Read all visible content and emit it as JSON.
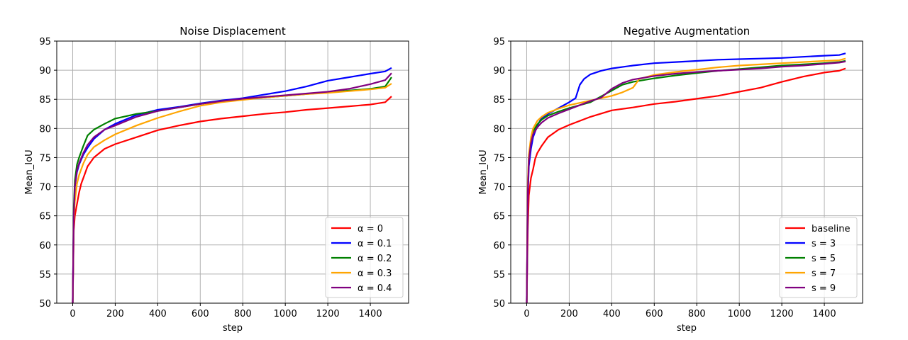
{
  "figure": {
    "charts": [
      {
        "key": "noise-displacement",
        "title": "Noise Displacement",
        "xlabel": "step",
        "ylabel": "Mean_IoU",
        "legend_title": "",
        "legend_location": "lower right"
      },
      {
        "key": "negative-augmentation",
        "title": "Negative Augmentation",
        "xlabel": "step",
        "ylabel": "Mean_IoU",
        "legend_title": "",
        "legend_location": "lower right"
      }
    ]
  },
  "chart_data": [
    {
      "type": "line",
      "title": "Noise Displacement",
      "xlabel": "step",
      "ylabel": "Mean_IoU",
      "xlim": [
        -75,
        1580
      ],
      "ylim": [
        50,
        95
      ],
      "xticks": [
        0,
        200,
        400,
        600,
        800,
        1000,
        1200,
        1400
      ],
      "yticks": [
        50,
        55,
        60,
        65,
        70,
        75,
        80,
        85,
        90,
        95
      ],
      "grid": true,
      "legend": "lower right",
      "series": [
        {
          "name": "α = 0",
          "color": "#ff0000",
          "x": [
            0,
            5,
            10,
            20,
            30,
            40,
            50,
            70,
            100,
            150,
            200,
            300,
            400,
            500,
            600,
            700,
            800,
            900,
            1000,
            1100,
            1200,
            1300,
            1400,
            1470,
            1500
          ],
          "y": [
            49.5,
            62.5,
            65.0,
            67.0,
            69.0,
            70.5,
            71.5,
            73.5,
            75.0,
            76.5,
            77.3,
            78.5,
            79.7,
            80.5,
            81.2,
            81.7,
            82.1,
            82.5,
            82.8,
            83.2,
            83.5,
            83.8,
            84.1,
            84.5,
            85.5
          ]
        },
        {
          "name": "α = 0.1",
          "color": "#0000ff",
          "x": [
            0,
            5,
            10,
            20,
            30,
            50,
            70,
            100,
            150,
            200,
            300,
            400,
            500,
            600,
            700,
            800,
            900,
            1000,
            1100,
            1200,
            1300,
            1400,
            1470,
            1500
          ],
          "y": [
            49.5,
            65.5,
            70.0,
            72.5,
            73.8,
            75.5,
            76.7,
            78.2,
            79.8,
            80.8,
            82.3,
            83.2,
            83.7,
            84.3,
            84.8,
            85.2,
            85.8,
            86.4,
            87.2,
            88.2,
            88.8,
            89.4,
            89.8,
            90.4
          ]
        },
        {
          "name": "α = 0.2",
          "color": "#008000",
          "x": [
            0,
            5,
            10,
            20,
            30,
            50,
            70,
            100,
            150,
            200,
            300,
            400,
            500,
            600,
            700,
            800,
            900,
            1000,
            1100,
            1200,
            1300,
            1400,
            1470,
            1500
          ],
          "y": [
            49.5,
            66.5,
            71.0,
            73.8,
            75.0,
            77.0,
            78.8,
            79.8,
            80.8,
            81.7,
            82.5,
            83.0,
            83.6,
            84.2,
            84.7,
            85.0,
            85.3,
            85.6,
            85.9,
            86.2,
            86.5,
            86.8,
            87.2,
            88.8
          ]
        },
        {
          "name": "α = 0.3",
          "color": "#ffa500",
          "x": [
            0,
            5,
            10,
            20,
            30,
            50,
            70,
            100,
            150,
            200,
            300,
            400,
            500,
            600,
            700,
            800,
            900,
            1000,
            1100,
            1200,
            1300,
            1400,
            1470,
            1500
          ],
          "y": [
            49.5,
            64.0,
            67.5,
            70.5,
            72.0,
            74.0,
            75.5,
            76.8,
            78.0,
            79.0,
            80.5,
            81.8,
            82.9,
            83.9,
            84.5,
            84.9,
            85.3,
            85.6,
            85.9,
            86.1,
            86.4,
            86.7,
            87.0,
            87.7
          ]
        },
        {
          "name": "α = 0.4",
          "color": "#800080",
          "x": [
            0,
            5,
            10,
            20,
            30,
            50,
            70,
            100,
            150,
            200,
            300,
            400,
            500,
            600,
            700,
            800,
            900,
            1000,
            1100,
            1200,
            1300,
            1400,
            1470,
            1500
          ],
          "y": [
            49.5,
            65.0,
            70.0,
            72.8,
            74.0,
            75.8,
            77.2,
            78.5,
            79.8,
            80.5,
            82.0,
            83.0,
            83.6,
            84.2,
            84.7,
            85.1,
            85.4,
            85.7,
            86.0,
            86.3,
            86.8,
            87.6,
            88.3,
            89.5
          ]
        }
      ]
    },
    {
      "type": "line",
      "title": "Negative Augmentation",
      "xlabel": "step",
      "ylabel": "Mean_IoU",
      "xlim": [
        -75,
        1580
      ],
      "ylim": [
        50,
        95
      ],
      "xticks": [
        0,
        200,
        400,
        600,
        800,
        1000,
        1200,
        1400
      ],
      "yticks": [
        50,
        55,
        60,
        65,
        70,
        75,
        80,
        85,
        90,
        95
      ],
      "grid": true,
      "legend": "lower right",
      "series": [
        {
          "name": "baseline",
          "color": "#ff0000",
          "x": [
            0,
            5,
            10,
            20,
            30,
            40,
            50,
            70,
            100,
            150,
            200,
            300,
            400,
            500,
            600,
            700,
            800,
            900,
            1000,
            1100,
            1200,
            1300,
            1400,
            1470,
            1500
          ],
          "y": [
            49.5,
            62.5,
            68.5,
            71.5,
            73.0,
            74.8,
            75.8,
            77.0,
            78.5,
            79.8,
            80.6,
            82.0,
            83.1,
            83.6,
            84.2,
            84.6,
            85.1,
            85.6,
            86.3,
            87.0,
            88.0,
            88.9,
            89.6,
            89.9,
            90.3
          ]
        },
        {
          "name": "s = 3",
          "color": "#0000ff",
          "x": [
            0,
            5,
            10,
            20,
            30,
            50,
            70,
            100,
            150,
            200,
            230,
            250,
            270,
            300,
            350,
            400,
            500,
            600,
            700,
            800,
            900,
            1000,
            1100,
            1200,
            1300,
            1400,
            1470,
            1500
          ],
          "y": [
            49.5,
            68.0,
            73.5,
            76.5,
            78.5,
            80.5,
            81.8,
            82.5,
            83.5,
            84.5,
            85.2,
            87.5,
            88.5,
            89.3,
            89.9,
            90.3,
            90.8,
            91.2,
            91.4,
            91.6,
            91.8,
            91.9,
            92.0,
            92.1,
            92.3,
            92.5,
            92.6,
            92.9
          ]
        },
        {
          "name": "s = 5",
          "color": "#008000",
          "x": [
            0,
            5,
            10,
            20,
            30,
            50,
            70,
            100,
            150,
            200,
            300,
            400,
            450,
            500,
            600,
            700,
            800,
            900,
            1000,
            1100,
            1200,
            1300,
            1400,
            1470,
            1500
          ],
          "y": [
            49.5,
            70.0,
            75.0,
            78.0,
            79.5,
            80.7,
            81.5,
            82.2,
            82.9,
            83.5,
            84.5,
            86.5,
            87.5,
            88.0,
            88.6,
            89.1,
            89.5,
            89.9,
            90.2,
            90.5,
            90.8,
            91.0,
            91.2,
            91.4,
            91.6
          ]
        },
        {
          "name": "s = 7",
          "color": "#ffa500",
          "x": [
            0,
            5,
            10,
            20,
            30,
            50,
            70,
            100,
            150,
            200,
            300,
            400,
            450,
            500,
            530,
            600,
            700,
            800,
            900,
            1000,
            1100,
            1200,
            1300,
            1400,
            1470,
            1500
          ],
          "y": [
            49.5,
            70.5,
            75.5,
            78.5,
            80.0,
            81.3,
            82.0,
            82.7,
            83.4,
            84.0,
            84.8,
            85.6,
            86.2,
            87.0,
            88.5,
            89.2,
            89.7,
            90.1,
            90.5,
            90.8,
            91.0,
            91.2,
            91.4,
            91.6,
            91.7,
            92.0
          ]
        },
        {
          "name": "s = 9",
          "color": "#800080",
          "x": [
            0,
            5,
            10,
            20,
            30,
            50,
            70,
            100,
            150,
            200,
            300,
            350,
            400,
            450,
            500,
            600,
            700,
            800,
            900,
            1000,
            1100,
            1200,
            1300,
            1400,
            1470,
            1500
          ],
          "y": [
            49.5,
            69.0,
            74.5,
            77.5,
            79.0,
            80.2,
            81.0,
            81.8,
            82.6,
            83.3,
            84.7,
            85.3,
            86.8,
            87.8,
            88.4,
            89.0,
            89.4,
            89.7,
            89.9,
            90.1,
            90.3,
            90.6,
            90.8,
            91.1,
            91.3,
            91.5
          ]
        }
      ]
    }
  ]
}
